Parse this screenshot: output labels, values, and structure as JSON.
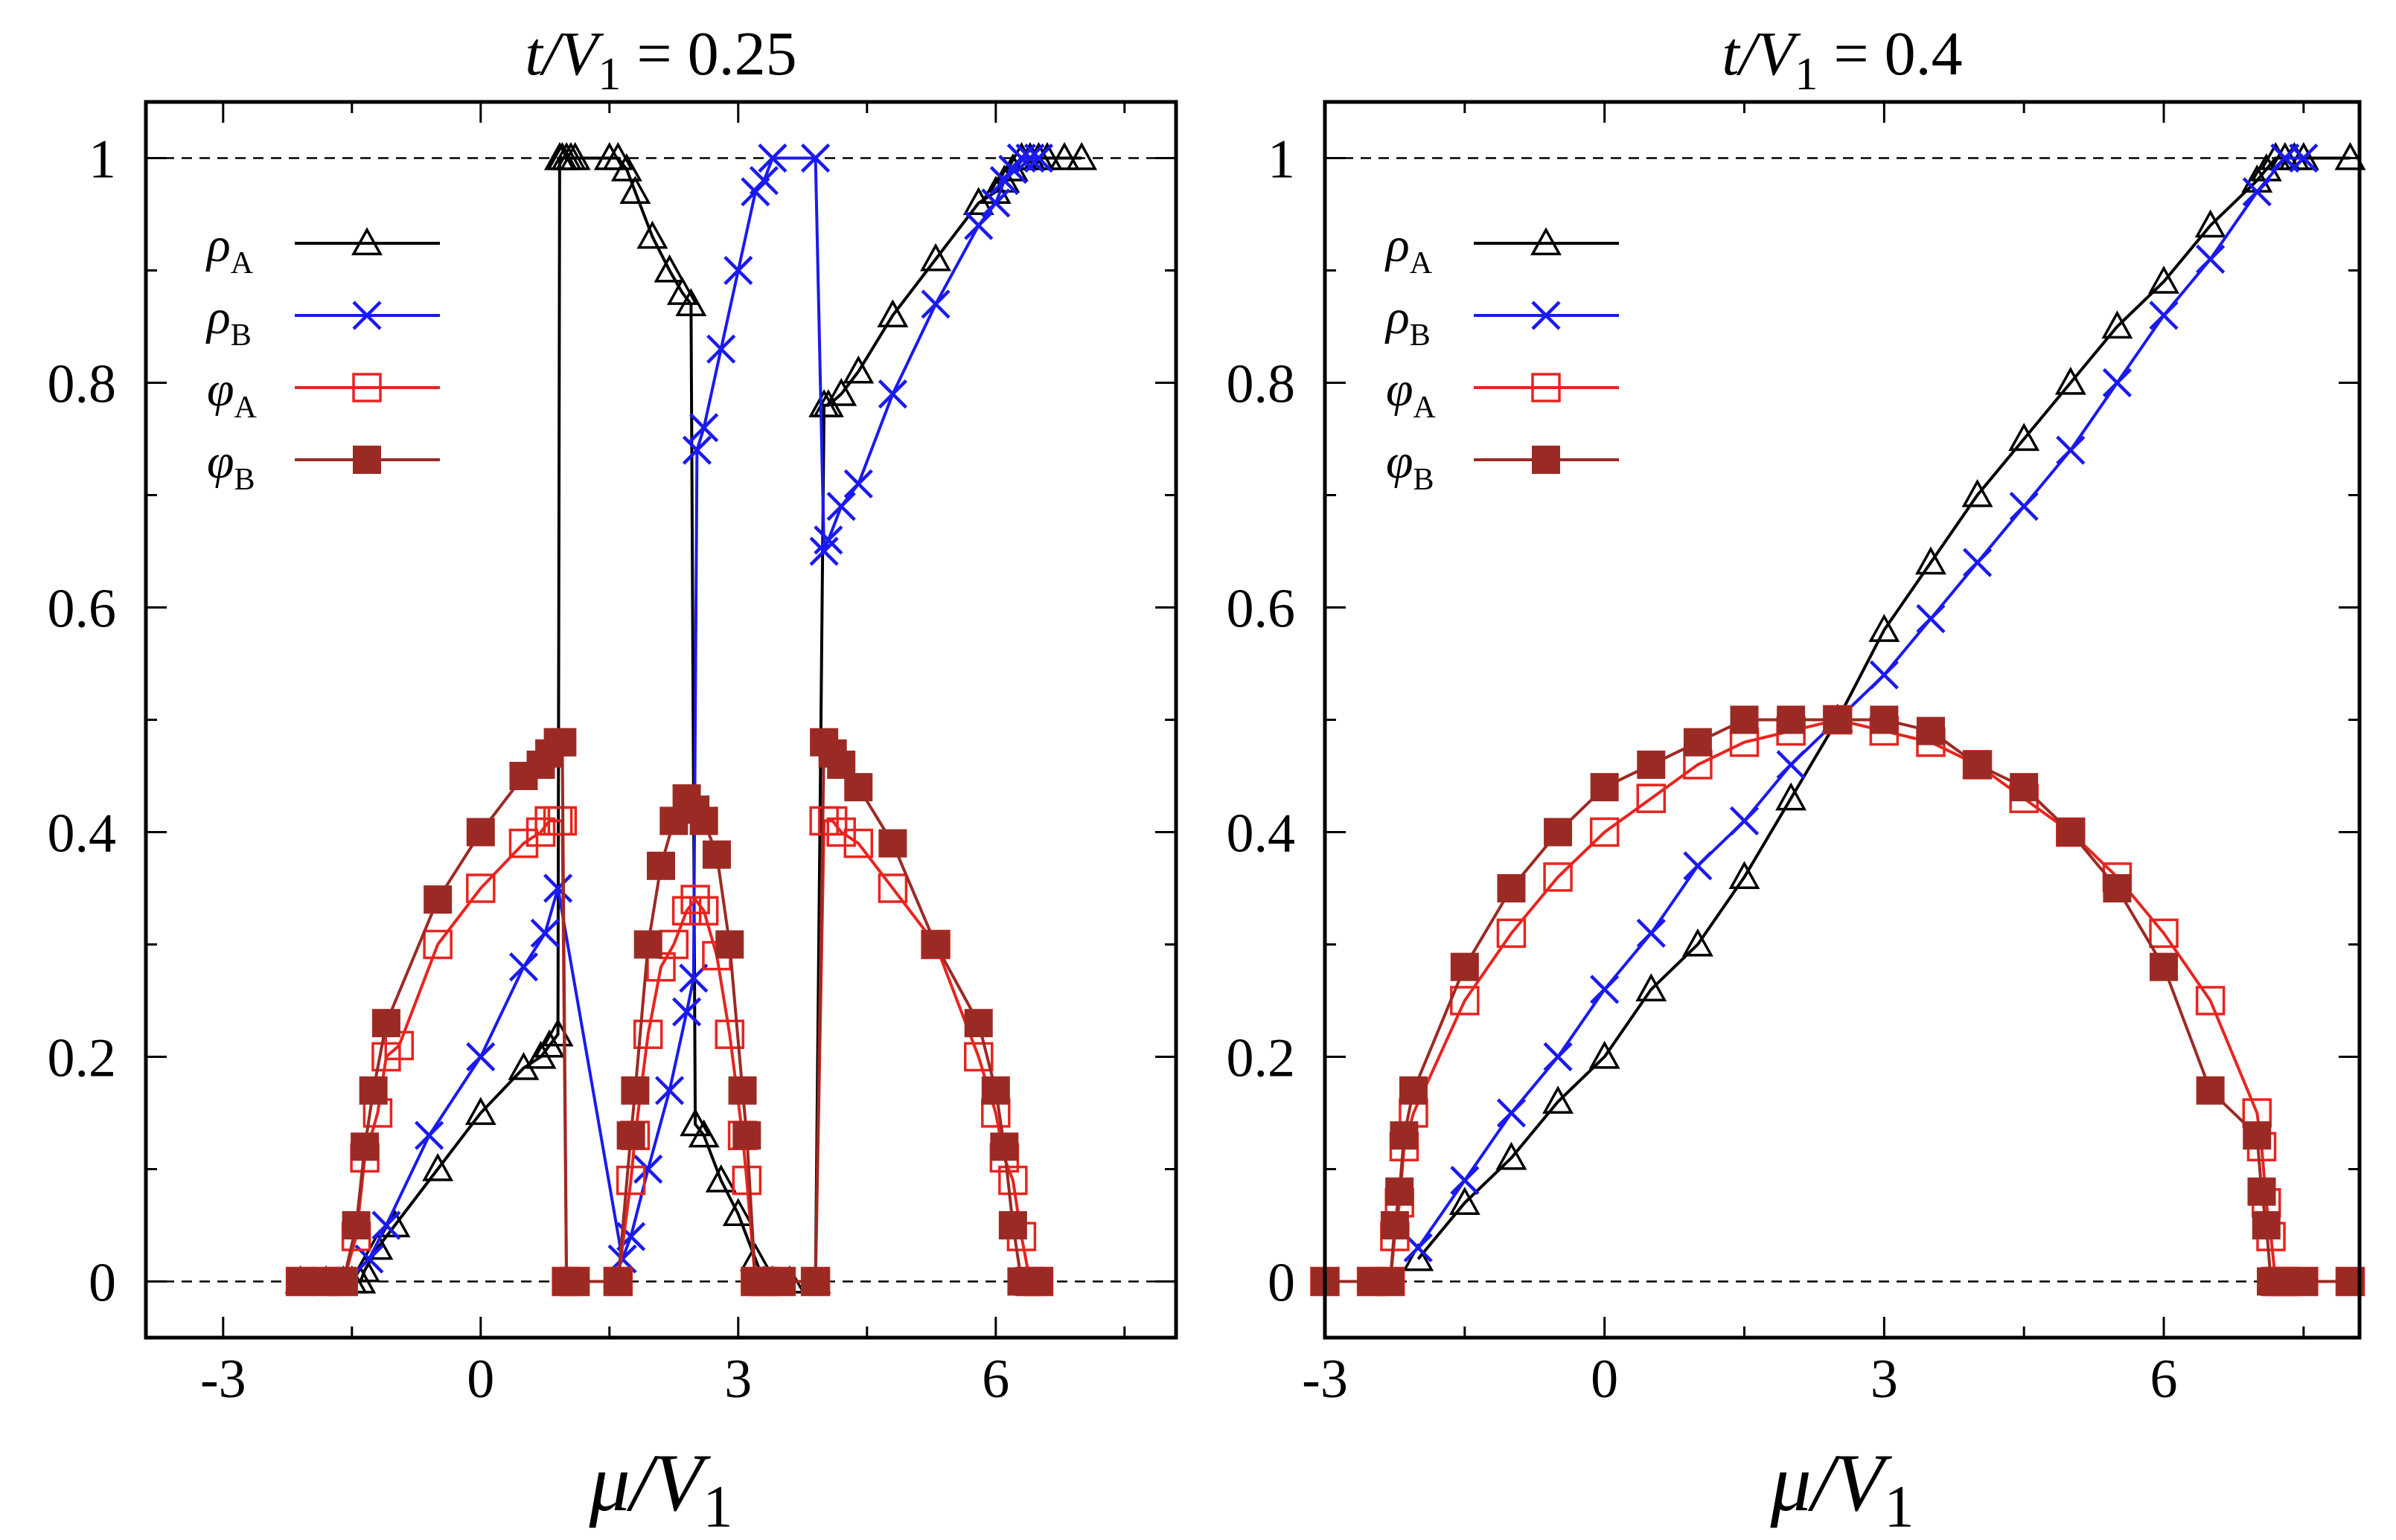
{
  "figure": {
    "xlabel": "μ/V1"
  },
  "chart_data": [
    {
      "type": "line",
      "title": "t/V1 = 0.25",
      "xlabel": "μ/V1",
      "ylabel": "",
      "xlim": [
        -3.9,
        8.1
      ],
      "ylim": [
        -0.05,
        1.05
      ],
      "xticks": [
        -3,
        0,
        3,
        6
      ],
      "xtick_labels": [
        "-3",
        "0",
        "3",
        "6"
      ],
      "yticks": [
        0,
        0.2,
        0.4,
        0.6,
        0.8,
        1
      ],
      "ytick_labels": [
        "0",
        "0.2",
        "0.4",
        "0.6",
        "0.8",
        "1"
      ],
      "reference_lines": [
        0,
        1
      ],
      "grid": false,
      "legend": "top-left",
      "series": [
        {
          "name": "ρA",
          "color": "#000000",
          "marker": "open-triangle",
          "x": [
            -2.1,
            -1.8,
            -1.6,
            -1.5,
            -1.4,
            -1.35,
            -1.2,
            -1.0,
            -0.5,
            0,
            0.5,
            0.7,
            0.8,
            0.9,
            0.92,
            0.95,
            1.0,
            1.05,
            1.1,
            1.5,
            1.6,
            1.7,
            1.8,
            2.0,
            2.2,
            2.35,
            2.45,
            2.5,
            2.6,
            2.8,
            3.0,
            3.2,
            3.3,
            3.4,
            3.6,
            3.9,
            4.0,
            4.05,
            4.2,
            4.4,
            4.8,
            5.3,
            5.8,
            6.0,
            6.1,
            6.2,
            6.3,
            6.4,
            6.5,
            6.6,
            6.8,
            7.0
          ],
          "y": [
            0,
            0,
            0,
            0,
            0,
            0.01,
            0.03,
            0.05,
            0.1,
            0.15,
            0.19,
            0.2,
            0.21,
            0.22,
            1,
            1,
            1,
            1,
            1,
            1,
            1,
            0.99,
            0.97,
            0.93,
            0.9,
            0.88,
            0.87,
            0.14,
            0.13,
            0.09,
            0.06,
            0.02,
            0,
            0,
            0,
            0,
            0.78,
            0.78,
            0.79,
            0.81,
            0.86,
            0.91,
            0.96,
            0.97,
            0.98,
            0.99,
            1,
            1,
            1,
            1,
            1,
            1
          ]
        },
        {
          "name": "ρB",
          "color": "#1a1aee",
          "marker": "cross",
          "x": [
            -1.3,
            -1.1,
            -0.6,
            0,
            0.5,
            0.75,
            0.9,
            1.65,
            1.75,
            1.95,
            2.2,
            2.4,
            2.48,
            2.52,
            2.6,
            2.8,
            3.0,
            3.2,
            3.3,
            3.4,
            3.9,
            4.0,
            4.05,
            4.2,
            4.4,
            4.8,
            5.3,
            5.8,
            6.0,
            6.1,
            6.2,
            6.3,
            6.4,
            6.5
          ],
          "y": [
            0.02,
            0.05,
            0.13,
            0.2,
            0.28,
            0.31,
            0.35,
            0.02,
            0.04,
            0.1,
            0.17,
            0.24,
            0.27,
            0.74,
            0.76,
            0.83,
            0.9,
            0.97,
            0.98,
            1,
            1,
            0.65,
            0.66,
            0.69,
            0.71,
            0.79,
            0.87,
            0.94,
            0.96,
            0.98,
            0.99,
            1,
            1,
            1
          ]
        },
        {
          "name": "φA",
          "color": "#e8241f",
          "marker": "open-square",
          "x": [
            -2.1,
            -1.8,
            -1.6,
            -1.45,
            -1.35,
            -1.2,
            -1.1,
            -0.95,
            -0.5,
            0,
            0.5,
            0.7,
            0.8,
            0.9,
            0.95,
            1.0,
            1.1,
            1.6,
            1.75,
            1.8,
            1.95,
            2.1,
            2.25,
            2.4,
            2.5,
            2.6,
            2.75,
            2.9,
            3.05,
            3.1,
            3.2,
            3.3,
            3.5,
            3.9,
            4.0,
            4.1,
            4.2,
            4.4,
            4.8,
            5.3,
            5.8,
            6.0,
            6.1,
            6.2,
            6.3,
            6.4,
            6.5
          ],
          "y": [
            0,
            0,
            0,
            0.04,
            0.11,
            0.15,
            0.2,
            0.21,
            0.3,
            0.35,
            0.39,
            0.4,
            0.41,
            0.41,
            0.41,
            0,
            0,
            0,
            0.09,
            0.13,
            0.22,
            0.28,
            0.3,
            0.33,
            0.34,
            0.33,
            0.29,
            0.22,
            0.13,
            0.09,
            0,
            0,
            0,
            0,
            0.41,
            0.41,
            0.4,
            0.39,
            0.35,
            0.3,
            0.2,
            0.15,
            0.11,
            0.09,
            0.04,
            0,
            0
          ]
        },
        {
          "name": "φB",
          "color": "#9c2a24",
          "marker": "filled-square",
          "x": [
            -2.1,
            -1.8,
            -1.6,
            -1.45,
            -1.35,
            -1.25,
            -1.1,
            -0.5,
            0,
            0.5,
            0.7,
            0.8,
            0.9,
            0.95,
            1.0,
            1.1,
            1.6,
            1.75,
            1.8,
            1.95,
            2.1,
            2.25,
            2.4,
            2.5,
            2.6,
            2.75,
            2.9,
            3.05,
            3.1,
            3.2,
            3.3,
            3.5,
            3.9,
            4.0,
            4.1,
            4.2,
            4.4,
            4.8,
            5.3,
            5.8,
            6.0,
            6.1,
            6.2,
            6.3,
            6.4,
            6.5
          ],
          "y": [
            0,
            0,
            0,
            0.05,
            0.12,
            0.17,
            0.23,
            0.34,
            0.4,
            0.45,
            0.46,
            0.47,
            0.48,
            0.48,
            0,
            0,
            0,
            0.13,
            0.17,
            0.3,
            0.37,
            0.41,
            0.43,
            0.42,
            0.41,
            0.38,
            0.3,
            0.17,
            0.13,
            0,
            0,
            0,
            0,
            0.48,
            0.47,
            0.46,
            0.44,
            0.39,
            0.3,
            0.23,
            0.17,
            0.12,
            0.05,
            0,
            0,
            0
          ]
        }
      ]
    },
    {
      "type": "line",
      "title": "t/V1 = 0.4",
      "xlabel": "μ/V1",
      "ylabel": "",
      "xlim": [
        -3.0,
        8.1
      ],
      "ylim": [
        -0.05,
        1.05
      ],
      "xticks": [
        -3,
        0,
        3,
        6
      ],
      "xtick_labels": [
        "-3",
        "0",
        "3",
        "6"
      ],
      "yticks": [
        0,
        0.2,
        0.4,
        0.6,
        0.8,
        1
      ],
      "ytick_labels": [
        "0",
        "0.2",
        "0.4",
        "0.6",
        "0.8",
        "1"
      ],
      "reference_lines": [
        0,
        1
      ],
      "grid": false,
      "legend": "top-left",
      "series": [
        {
          "name": "ρA",
          "color": "#000000",
          "marker": "open-triangle",
          "x": [
            -2.0,
            -1.5,
            -1.0,
            -0.5,
            0,
            0.5,
            1.0,
            1.5,
            2.0,
            2.5,
            3.0,
            3.5,
            4.0,
            4.5,
            5.0,
            5.5,
            6.0,
            6.5,
            7.0,
            7.1,
            7.2,
            7.3,
            7.4,
            7.5,
            8.0
          ],
          "y": [
            0.02,
            0.07,
            0.11,
            0.16,
            0.2,
            0.26,
            0.3,
            0.36,
            0.43,
            0.5,
            0.58,
            0.64,
            0.7,
            0.75,
            0.8,
            0.85,
            0.89,
            0.94,
            0.98,
            0.99,
            1,
            1,
            1,
            1,
            1
          ]
        },
        {
          "name": "ρB",
          "color": "#1a1aee",
          "marker": "cross",
          "x": [
            -2.0,
            -1.5,
            -1.0,
            -0.5,
            0,
            0.5,
            1.0,
            1.5,
            2.0,
            2.5,
            3.0,
            3.5,
            4.0,
            4.5,
            5.0,
            5.5,
            6.0,
            6.5,
            7.0,
            7.3,
            7.5
          ],
          "y": [
            0.03,
            0.09,
            0.15,
            0.2,
            0.26,
            0.31,
            0.37,
            0.41,
            0.46,
            0.5,
            0.54,
            0.59,
            0.64,
            0.69,
            0.74,
            0.8,
            0.86,
            0.91,
            0.97,
            1,
            1
          ]
        },
        {
          "name": "φA",
          "color": "#e8241f",
          "marker": "open-square",
          "x": [
            -3.0,
            -2.5,
            -2.3,
            -2.25,
            -2.2,
            -2.15,
            -2.05,
            -1.5,
            -1.0,
            -0.5,
            0,
            0.5,
            1.0,
            1.5,
            2.0,
            2.5,
            3.0,
            3.5,
            4.0,
            4.5,
            5.0,
            5.5,
            6.0,
            6.5,
            7.0,
            7.05,
            7.1,
            7.15,
            7.2,
            7.25,
            7.3,
            7.5,
            8.0
          ],
          "y": [
            0,
            0,
            0,
            0.04,
            0.07,
            0.12,
            0.15,
            0.25,
            0.31,
            0.36,
            0.4,
            0.43,
            0.46,
            0.48,
            0.49,
            0.5,
            0.49,
            0.48,
            0.46,
            0.43,
            0.4,
            0.36,
            0.31,
            0.25,
            0.15,
            0.12,
            0.07,
            0.04,
            0,
            0,
            0,
            0,
            0
          ]
        },
        {
          "name": "φB",
          "color": "#9c2a24",
          "marker": "filled-square",
          "x": [
            -3.0,
            -2.5,
            -2.3,
            -2.25,
            -2.2,
            -2.15,
            -2.05,
            -1.5,
            -1.0,
            -0.5,
            0,
            0.5,
            1.0,
            1.5,
            2.0,
            2.5,
            3.0,
            3.5,
            4.0,
            4.5,
            5.0,
            5.5,
            6.0,
            6.5,
            7.0,
            7.05,
            7.1,
            7.15,
            7.2,
            7.25,
            7.3,
            7.5,
            8.0
          ],
          "y": [
            0,
            0,
            0,
            0.05,
            0.08,
            0.13,
            0.17,
            0.28,
            0.35,
            0.4,
            0.44,
            0.46,
            0.48,
            0.5,
            0.5,
            0.5,
            0.5,
            0.49,
            0.46,
            0.44,
            0.4,
            0.35,
            0.28,
            0.17,
            0.13,
            0.08,
            0.05,
            0,
            0,
            0,
            0,
            0,
            0
          ]
        }
      ]
    }
  ]
}
